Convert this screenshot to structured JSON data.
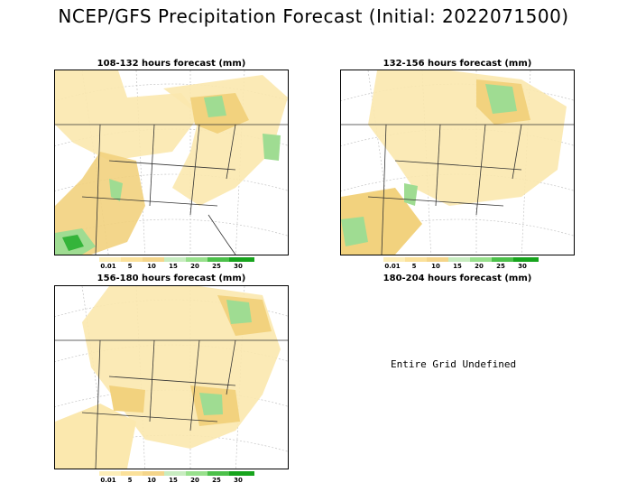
{
  "title": "NCEP/GFS Precipitation Forecast (Initial: 2022071500)",
  "panels": [
    {
      "label": "108-132 hours forecast (mm)"
    },
    {
      "label": "132-156 hours forecast (mm)"
    },
    {
      "label": "156-180 hours forecast (mm)"
    },
    {
      "label": "180-204 hours forecast (mm)"
    }
  ],
  "undefined_text": "Entire Grid Undefined",
  "colorbar": {
    "labels": [
      "0.01",
      "5",
      "10",
      "15",
      "20",
      "25",
      "30"
    ],
    "colors": [
      "#fdeeb8",
      "#fbe19a",
      "#f4d58a",
      "#c8ecc0",
      "#98e08c",
      "#4cc04a",
      "#17a41d"
    ]
  },
  "colors": {
    "precip_light": "#fbe8ae",
    "precip_mid": "#f2d27e",
    "precip_green": "#9fdc92",
    "precip_dark_green": "#34b43a"
  }
}
